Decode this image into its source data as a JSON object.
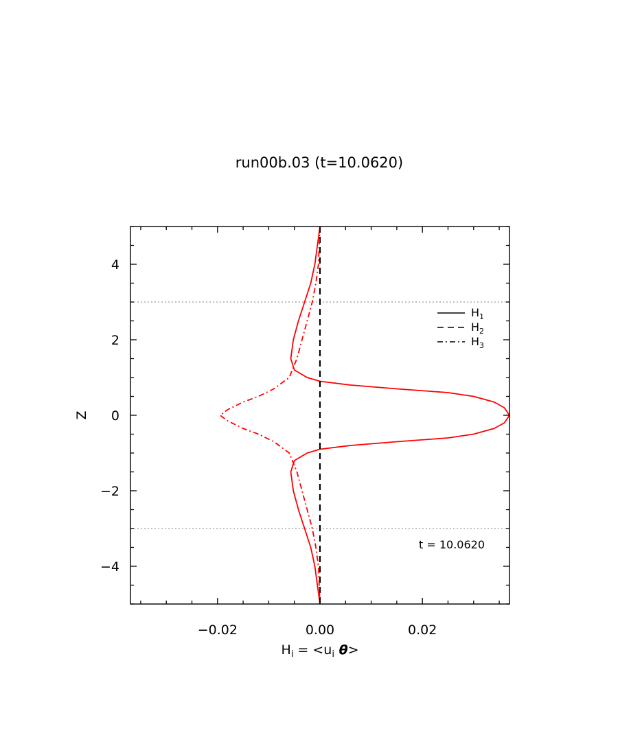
{
  "chart_data": {
    "type": "line",
    "title": "run00b.03 (t=10.0620)",
    "xlabel": {
      "base": "H",
      "base_sub": "i",
      "eq": " = <u",
      "u_sub": "i",
      "theta": " θ",
      "end": ">"
    },
    "ylabel": "Z",
    "xlim": [
      -0.037,
      0.037
    ],
    "ylim": [
      -5,
      5
    ],
    "x_major_ticks": [
      -0.02,
      0.0,
      0.02
    ],
    "x_tick_labels": [
      "−0.02",
      "0.00",
      "0.02"
    ],
    "x_minor_step": 0.005,
    "y_major_ticks": [
      -4,
      -2,
      0,
      2,
      4
    ],
    "y_tick_labels": [
      "−4",
      "−2",
      "0",
      "2",
      "4"
    ],
    "y_minor_step": 0.5,
    "reference_lines_z": [
      3,
      -3
    ],
    "annotation": "t  =  10.0620",
    "legend": {
      "placement": "top-right",
      "entries": [
        {
          "name": "H",
          "sub": "1",
          "style": "solid"
        },
        {
          "name": "H",
          "sub": "2",
          "style": "dashed"
        },
        {
          "name": "H",
          "sub": "3",
          "style": "dashdot"
        }
      ]
    },
    "series": [
      {
        "label_key": "H1",
        "style": "solid",
        "color": "#ff0000",
        "points": [
          [
            0.0,
            5.0
          ],
          [
            -0.0005,
            4.5
          ],
          [
            -0.001,
            4.0
          ],
          [
            -0.0018,
            3.5
          ],
          [
            -0.003,
            3.0
          ],
          [
            -0.0042,
            2.5
          ],
          [
            -0.0052,
            2.0
          ],
          [
            -0.0057,
            1.5
          ],
          [
            -0.005,
            1.2
          ],
          [
            -0.0025,
            1.0
          ],
          [
            0.0,
            0.9
          ],
          [
            0.006,
            0.8
          ],
          [
            0.015,
            0.7
          ],
          [
            0.025,
            0.6
          ],
          [
            0.03,
            0.5
          ],
          [
            0.034,
            0.35
          ],
          [
            0.036,
            0.2
          ],
          [
            0.037,
            0.0
          ],
          [
            0.036,
            -0.2
          ],
          [
            0.034,
            -0.35
          ],
          [
            0.03,
            -0.5
          ],
          [
            0.025,
            -0.6
          ],
          [
            0.015,
            -0.7
          ],
          [
            0.006,
            -0.8
          ],
          [
            0.0,
            -0.9
          ],
          [
            -0.0025,
            -1.0
          ],
          [
            -0.005,
            -1.2
          ],
          [
            -0.0057,
            -1.5
          ],
          [
            -0.0052,
            -2.0
          ],
          [
            -0.0042,
            -2.5
          ],
          [
            -0.003,
            -3.0
          ],
          [
            -0.0018,
            -3.5
          ],
          [
            -0.001,
            -4.0
          ],
          [
            -0.0005,
            -4.5
          ],
          [
            0.0,
            -5.0
          ]
        ]
      },
      {
        "label_key": "H2",
        "style": "dashed",
        "color": "#000000",
        "points": [
          [
            0.0,
            5.0
          ],
          [
            0.0,
            -5.0
          ]
        ]
      },
      {
        "label_key": "H3",
        "style": "dashdot",
        "color": "#ff0000",
        "points": [
          [
            0.0,
            5.0
          ],
          [
            -0.0003,
            4.0
          ],
          [
            -0.0008,
            3.5
          ],
          [
            -0.0015,
            3.0
          ],
          [
            -0.0025,
            2.5
          ],
          [
            -0.0035,
            2.0
          ],
          [
            -0.0045,
            1.5
          ],
          [
            -0.006,
            1.0
          ],
          [
            -0.009,
            0.7
          ],
          [
            -0.012,
            0.5
          ],
          [
            -0.015,
            0.35
          ],
          [
            -0.018,
            0.15
          ],
          [
            -0.0195,
            0.0
          ],
          [
            -0.018,
            -0.15
          ],
          [
            -0.015,
            -0.35
          ],
          [
            -0.012,
            -0.5
          ],
          [
            -0.009,
            -0.7
          ],
          [
            -0.006,
            -1.0
          ],
          [
            -0.0045,
            -1.5
          ],
          [
            -0.0035,
            -2.0
          ],
          [
            -0.0025,
            -2.5
          ],
          [
            -0.0015,
            -3.0
          ],
          [
            -0.0008,
            -3.5
          ],
          [
            -0.0003,
            -4.0
          ],
          [
            0.0,
            -5.0
          ]
        ]
      }
    ]
  }
}
